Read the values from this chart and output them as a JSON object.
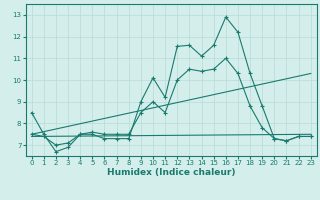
{
  "x": [
    0,
    1,
    2,
    3,
    4,
    5,
    6,
    7,
    8,
    9,
    10,
    11,
    12,
    13,
    14,
    15,
    16,
    17,
    18,
    19,
    20,
    21,
    22,
    23
  ],
  "line_jagged1": [
    8.5,
    7.5,
    6.7,
    6.9,
    7.5,
    7.5,
    7.3,
    7.3,
    7.3,
    9.0,
    10.1,
    9.2,
    11.55,
    11.6,
    11.1,
    11.6,
    12.9,
    12.2,
    10.3,
    8.8,
    7.3,
    7.2,
    7.4,
    7.4
  ],
  "line_jagged2": [
    7.5,
    7.4,
    7.0,
    7.1,
    7.5,
    7.6,
    7.5,
    7.5,
    7.5,
    8.5,
    9.0,
    8.5,
    10.0,
    10.5,
    10.4,
    10.5,
    11.0,
    10.3,
    8.8,
    7.8,
    7.3,
    7.2,
    7.4,
    7.4
  ],
  "trend1_x": [
    0,
    23
  ],
  "trend1_y": [
    7.5,
    10.3
  ],
  "trend2_x": [
    0,
    23
  ],
  "trend2_y": [
    7.4,
    7.5
  ],
  "line_color": "#1a7a6e",
  "bg_color": "#d4eeeb",
  "grid_color": "#b8dbd8",
  "xlabel": "Humidex (Indice chaleur)",
  "ylim": [
    6.5,
    13.5
  ],
  "xlim": [
    -0.5,
    23.5
  ],
  "yticks": [
    7,
    8,
    9,
    10,
    11,
    12,
    13
  ],
  "xticks": [
    0,
    1,
    2,
    3,
    4,
    5,
    6,
    7,
    8,
    9,
    10,
    11,
    12,
    13,
    14,
    15,
    16,
    17,
    18,
    19,
    20,
    21,
    22,
    23
  ]
}
